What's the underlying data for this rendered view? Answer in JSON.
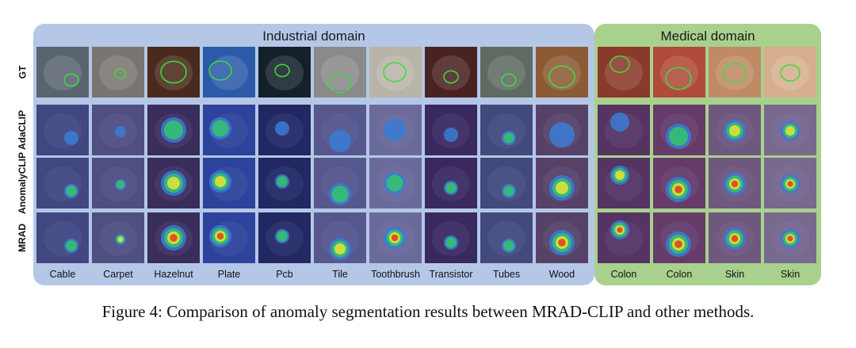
{
  "domains": {
    "industrial": "Industrial domain",
    "medical": "Medical domain"
  },
  "rows": [
    "GT",
    "AdaCLIP",
    "AnomalyCLIP",
    "MRAD"
  ],
  "columns": [
    {
      "label": "Cable",
      "domain": "industrial"
    },
    {
      "label": "Carpet",
      "domain": "industrial"
    },
    {
      "label": "Hazelnut",
      "domain": "industrial"
    },
    {
      "label": "Plate",
      "domain": "industrial"
    },
    {
      "label": "Pcb",
      "domain": "industrial"
    },
    {
      "label": "Tile",
      "domain": "industrial"
    },
    {
      "label": "Toothbrush",
      "domain": "industrial"
    },
    {
      "label": "Transistor",
      "domain": "industrial"
    },
    {
      "label": "Tubes",
      "domain": "industrial"
    },
    {
      "label": "Wood",
      "domain": "industrial"
    },
    {
      "label": "Colon",
      "domain": "medical"
    },
    {
      "label": "Colon",
      "domain": "medical"
    },
    {
      "label": "Skin",
      "domain": "medical"
    },
    {
      "label": "Skin",
      "domain": "medical"
    }
  ],
  "colors": {
    "industrial_bg": "#b4c7e7",
    "medical_bg": "#a9d18e",
    "gt_contour": "#3ddc3d",
    "heatmap_base": "#2b2f8f"
  },
  "caption": "Figure 4: Comparison of anomaly segmentation results between MRAD-CLIP and other methods."
}
